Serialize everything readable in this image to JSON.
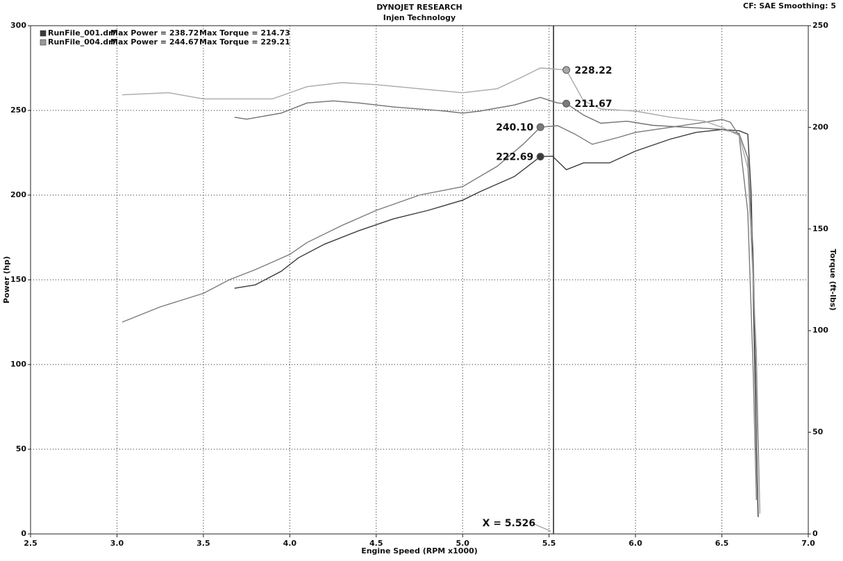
{
  "chart_data": {
    "type": "line",
    "title": "DYNOJET RESEARCH",
    "subtitle": "Injen Technology",
    "corner_text": "CF: SAE  Smoothing: 5",
    "x_label": "Engine Speed (RPM x1000)",
    "y_label": "Power (hp)",
    "y2_label": "Torque (ft-lbs)",
    "xlim": [
      2.5,
      7.0
    ],
    "xticks": [
      {
        "value": 2.5,
        "label": "2.5"
      },
      {
        "value": 3.0,
        "label": "3.0"
      },
      {
        "value": 3.5,
        "label": "3.5"
      },
      {
        "value": 4.0,
        "label": "4.0"
      },
      {
        "value": 4.5,
        "label": "4.5"
      },
      {
        "value": 5.0,
        "label": "5.0"
      },
      {
        "value": 5.5,
        "label": "5.5"
      },
      {
        "value": 6.0,
        "label": "6.0"
      },
      {
        "value": 6.5,
        "label": "6.5"
      },
      {
        "value": 7.0,
        "label": "7.0"
      }
    ],
    "ylim": [
      0,
      300
    ],
    "yticks": [
      0,
      50,
      100,
      150,
      200,
      250,
      300
    ],
    "y2lim": [
      0,
      250
    ],
    "y2ticks": [
      0,
      50,
      100,
      150,
      200,
      250
    ],
    "grid": true,
    "legend": [
      {
        "name": "RunFile_001.drf",
        "text": "Max Power = 238.72",
        "text2": "Max Torque = 214.73",
        "color": "#3a3a3a"
      },
      {
        "name": "RunFile_004.drf",
        "text": "Max Power = 244.67",
        "text2": "Max Torque = 229.21",
        "color": "#9a9a9a"
      }
    ],
    "series": [
      {
        "color": "#3a3a3a",
        "axis": "y",
        "x": [
          3.68,
          3.8,
          3.95,
          4.05,
          4.2,
          4.4,
          4.6,
          4.8,
          5.0,
          5.1,
          5.3,
          5.45,
          5.52,
          5.6,
          5.7,
          5.85,
          6.0,
          6.2,
          6.35,
          6.5,
          6.6,
          6.65,
          6.67,
          6.68,
          6.7,
          6.71
        ],
        "values": [
          145,
          147,
          155,
          163,
          171,
          179,
          186,
          191,
          197,
          202,
          211,
          222.69,
          223,
          215,
          219,
          219,
          226,
          233,
          237,
          238.72,
          238,
          236,
          200,
          150,
          50,
          10
        ]
      },
      {
        "color": "#7a7a7a",
        "axis": "y",
        "x": [
          3.03,
          3.25,
          3.5,
          3.65,
          3.8,
          4.0,
          4.1,
          4.3,
          4.5,
          4.75,
          5.0,
          5.2,
          5.35,
          5.45,
          5.55,
          5.65,
          5.75,
          5.9,
          6.0,
          6.2,
          6.4,
          6.5,
          6.55,
          6.6,
          6.65,
          6.68,
          6.7
        ],
        "values": [
          125,
          134,
          142,
          150,
          156,
          165,
          172,
          182,
          191,
          200,
          205,
          217,
          230,
          240.1,
          241,
          236,
          230,
          234,
          237,
          240,
          243,
          244.67,
          243,
          235,
          190,
          100,
          20
        ]
      },
      {
        "color": "#707070",
        "axis": "y2",
        "x": [
          3.68,
          3.75,
          3.95,
          4.1,
          4.25,
          4.4,
          4.6,
          4.9,
          5.0,
          5.1,
          5.3,
          5.45,
          5.55,
          5.6,
          5.7,
          5.8,
          5.95,
          6.1,
          6.3,
          6.5,
          6.6,
          6.65,
          6.68,
          6.7,
          6.72
        ],
        "values": [
          205,
          204,
          207,
          212,
          213,
          212,
          210,
          208,
          207,
          208,
          211,
          214.73,
          212,
          211.67,
          206,
          202,
          203,
          201,
          200,
          199,
          197,
          185,
          140,
          70,
          10
        ]
      },
      {
        "color": "#a8a8a8",
        "axis": "y2",
        "x": [
          3.03,
          3.3,
          3.5,
          3.7,
          3.9,
          4.0,
          4.1,
          4.3,
          4.5,
          4.75,
          5.0,
          5.2,
          5.35,
          5.45,
          5.6,
          5.7,
          5.8,
          6.0,
          6.2,
          6.4,
          6.5,
          6.6,
          6.65,
          6.7,
          6.72
        ],
        "values": [
          216,
          217,
          214,
          214,
          214,
          217,
          220,
          222,
          221,
          219,
          217,
          219,
          225,
          229.21,
          228.22,
          213,
          209,
          208,
          205,
          203,
          200,
          196,
          180,
          90,
          10
        ]
      }
    ],
    "markers": [
      {
        "x": 5.6,
        "value": 228.22,
        "axis": "y2",
        "color": "#a8a8a8"
      },
      {
        "x": 5.6,
        "value": 211.67,
        "axis": "y2",
        "color": "#7a7a7a"
      },
      {
        "x": 5.45,
        "value": 240.1,
        "label": "240.10",
        "axis": "y",
        "color": "#7a7a7a"
      },
      {
        "x": 5.45,
        "value": 222.69,
        "axis": "y",
        "color": "#3a3a3a"
      }
    ],
    "cursor": {
      "x": 5.526,
      "label": "X = 5.526"
    }
  }
}
